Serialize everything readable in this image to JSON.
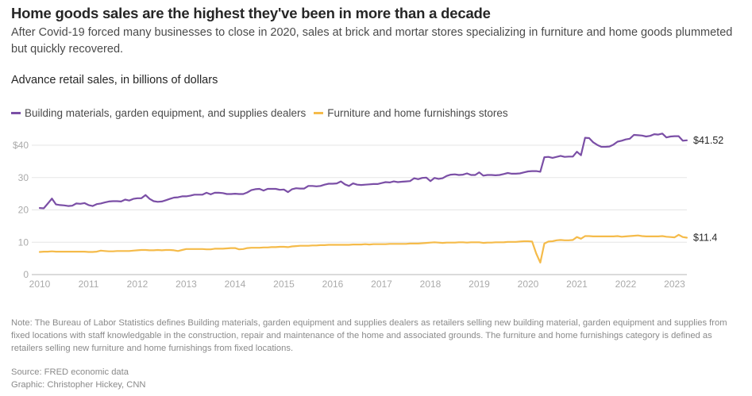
{
  "header": {
    "title": "Home goods sales are the highest they've been in more than a decade",
    "subtitle": "After Covid-19 forced many businesses to close in 2020, sales at brick and mortar stores specializing in furniture and home goods plummeted but quickly recovered.",
    "chart_heading": "Advance retail sales, in billions of dollars"
  },
  "footer": {
    "note": "Note: The Bureau of Labor Statistics defines Building materials, garden equipment and supplies dealers as retailers selling new building material, garden equipment and supplies from fixed locations with staff knowledgable in the construction, repair and maintenance of the home and associated grounds. The furniture and home furnishings category is defined as retailers selling new furniture and home furnishings from fixed locations.",
    "source": "Source: FRED economic data",
    "credit": "Graphic: Christopher Hickey, CNN"
  },
  "chart_data": {
    "type": "line",
    "title": "Advance retail sales, in billions of dollars",
    "xlabel": "",
    "ylabel": "",
    "x_start": "2010-01",
    "x_frequency": "monthly",
    "xlim": [
      2010,
      2023.33
    ],
    "ylim": [
      0,
      40
    ],
    "yticks": [
      0,
      10,
      20,
      30,
      40
    ],
    "ytick_labels": [
      "0",
      "10",
      "20",
      "30",
      "$40"
    ],
    "xticks": [
      2010,
      2011,
      2012,
      2013,
      2014,
      2015,
      2016,
      2017,
      2018,
      2019,
      2020,
      2021,
      2022,
      2023
    ],
    "xtick_labels": [
      "2010",
      "2011",
      "2012",
      "2013",
      "2014",
      "2015",
      "2016",
      "2017",
      "2018",
      "2019",
      "2020",
      "2021",
      "2022",
      "2023"
    ],
    "grid": true,
    "legend_position": "top-left",
    "series": [
      {
        "name": "Building materials, garden equipment, and supplies dealers",
        "color": "#7b4fa6",
        "end_label": "$41.52",
        "values": [
          20.6,
          20.5,
          22.0,
          23.5,
          21.7,
          21.5,
          21.4,
          21.2,
          21.3,
          22.0,
          21.9,
          22.1,
          21.5,
          21.2,
          21.8,
          22.0,
          22.3,
          22.6,
          22.7,
          22.7,
          22.6,
          23.2,
          22.9,
          23.4,
          23.6,
          23.6,
          24.6,
          23.4,
          22.7,
          22.5,
          22.6,
          23.0,
          23.4,
          23.8,
          23.9,
          24.2,
          24.2,
          24.4,
          24.7,
          24.7,
          24.7,
          25.3,
          24.8,
          25.3,
          25.3,
          25.2,
          24.9,
          24.9,
          25.0,
          24.9,
          24.9,
          25.4,
          26.1,
          26.4,
          26.5,
          26.0,
          26.5,
          26.5,
          26.5,
          26.2,
          26.3,
          25.5,
          26.4,
          26.7,
          26.6,
          26.6,
          27.4,
          27.4,
          27.3,
          27.4,
          27.8,
          28.1,
          28.1,
          28.2,
          28.8,
          27.9,
          27.4,
          28.2,
          27.8,
          27.7,
          27.8,
          27.9,
          28.0,
          28.0,
          28.3,
          28.6,
          28.5,
          28.8,
          28.6,
          28.7,
          28.8,
          28.9,
          29.8,
          29.5,
          29.9,
          30.0,
          28.9,
          29.9,
          29.6,
          29.8,
          30.5,
          30.9,
          31.0,
          30.8,
          30.9,
          31.3,
          30.8,
          30.8,
          31.6,
          30.6,
          30.8,
          30.8,
          30.7,
          30.8,
          31.1,
          31.4,
          31.2,
          31.2,
          31.3,
          31.6,
          31.9,
          32.0,
          32.0,
          31.8,
          36.3,
          36.4,
          36.1,
          36.4,
          36.7,
          36.4,
          36.5,
          36.5,
          38.0,
          36.9,
          42.3,
          42.2,
          40.9,
          40.1,
          39.5,
          39.5,
          39.6,
          40.2,
          41.1,
          41.4,
          41.8,
          42.0,
          43.2,
          43.1,
          43.0,
          42.7,
          42.9,
          43.4,
          43.3,
          43.6,
          42.4,
          42.7,
          42.8,
          42.8,
          41.4,
          41.52
        ]
      },
      {
        "name": "Furniture and home furnishings stores",
        "color": "#f5bb4a",
        "end_label": "$11.4",
        "values": [
          7.0,
          7.1,
          7.1,
          7.2,
          7.1,
          7.1,
          7.1,
          7.1,
          7.1,
          7.1,
          7.1,
          7.1,
          7.0,
          7.0,
          7.1,
          7.4,
          7.3,
          7.2,
          7.2,
          7.3,
          7.3,
          7.3,
          7.3,
          7.4,
          7.5,
          7.6,
          7.6,
          7.5,
          7.5,
          7.6,
          7.5,
          7.6,
          7.6,
          7.5,
          7.3,
          7.6,
          7.9,
          7.9,
          7.9,
          7.9,
          7.9,
          7.8,
          7.8,
          8.0,
          8.0,
          8.0,
          8.1,
          8.2,
          8.2,
          7.8,
          7.9,
          8.2,
          8.3,
          8.3,
          8.3,
          8.4,
          8.4,
          8.5,
          8.5,
          8.6,
          8.6,
          8.5,
          8.7,
          8.8,
          8.9,
          8.9,
          8.9,
          9.0,
          9.0,
          9.1,
          9.1,
          9.2,
          9.2,
          9.2,
          9.2,
          9.2,
          9.2,
          9.3,
          9.3,
          9.3,
          9.4,
          9.3,
          9.4,
          9.4,
          9.4,
          9.4,
          9.5,
          9.5,
          9.5,
          9.5,
          9.5,
          9.6,
          9.6,
          9.6,
          9.7,
          9.8,
          9.9,
          10.0,
          9.9,
          9.8,
          9.9,
          9.9,
          9.9,
          10.0,
          10.0,
          9.9,
          10.0,
          10.0,
          10.0,
          9.8,
          9.9,
          9.9,
          10.0,
          10.0,
          10.0,
          10.1,
          10.1,
          10.1,
          10.2,
          10.3,
          10.3,
          10.2,
          6.5,
          3.7,
          9.6,
          10.2,
          10.3,
          10.6,
          10.7,
          10.6,
          10.6,
          10.7,
          11.6,
          11.1,
          11.9,
          11.9,
          11.8,
          11.8,
          11.8,
          11.8,
          11.8,
          11.8,
          11.9,
          11.7,
          11.8,
          11.9,
          12.0,
          12.1,
          11.9,
          11.8,
          11.8,
          11.8,
          11.8,
          11.9,
          11.7,
          11.6,
          11.5,
          12.3,
          11.6,
          11.4
        ]
      }
    ]
  }
}
